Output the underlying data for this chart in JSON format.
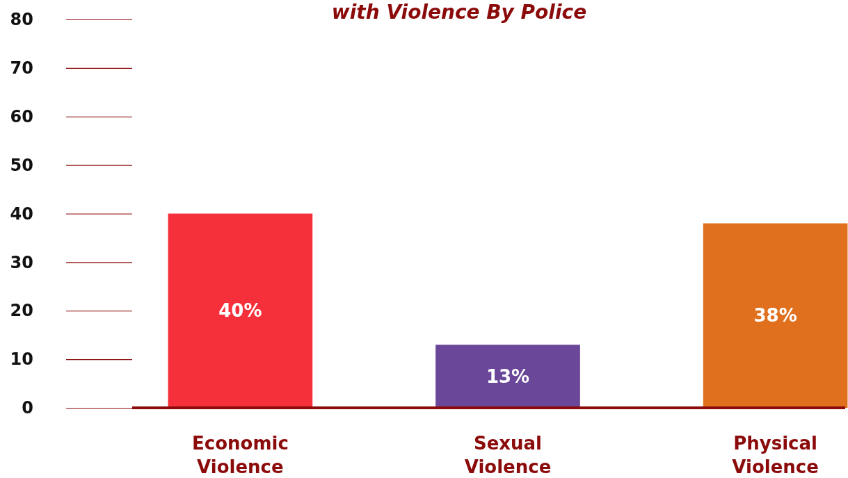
{
  "chart_data": {
    "type": "bar",
    "title": "with Violence By Police",
    "categories": [
      "Economic Violence",
      "Sexual Violence",
      "Physical Violence"
    ],
    "values": [
      40,
      13,
      38
    ],
    "colors": [
      "#f5303a",
      "#6a4799",
      "#e0701e"
    ],
    "value_labels": [
      "40%",
      "13%",
      "38%"
    ],
    "ylim": [
      0,
      80
    ],
    "yticks": [
      0,
      10,
      20,
      30,
      40,
      50,
      60,
      70,
      80
    ]
  }
}
